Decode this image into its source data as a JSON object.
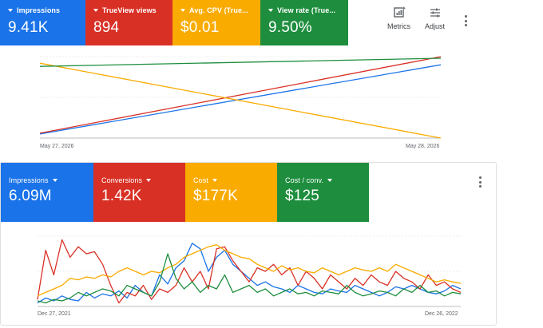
{
  "top_panel": {
    "metrics": [
      {
        "label": "Impressions",
        "value": "9.41K",
        "color": "#1a73e8"
      },
      {
        "label": "TrueView views",
        "value": "894",
        "color": "#d93025"
      },
      {
        "label": "Avg. CPV (True...",
        "value": "$0.01",
        "color": "#f9ab00"
      },
      {
        "label": "View rate (True...",
        "value": "9.50%",
        "color": "#1e8e3e"
      }
    ],
    "toolbar": {
      "metrics_label": "Metrics",
      "adjust_label": "Adjust",
      "metrics_icon": "metrics-chart-icon",
      "adjust_icon": "tune-icon",
      "more_icon": "more-vert-icon"
    },
    "date_start": "May 27, 2026",
    "date_end": "May 28, 2026"
  },
  "bottom_panel": {
    "metrics": [
      {
        "label": "Impressions",
        "value": "6.09M",
        "color": "#1a73e8"
      },
      {
        "label": "Conversions",
        "value": "1.42K",
        "color": "#d93025"
      },
      {
        "label": "Cost",
        "value": "$177K",
        "color": "#f9ab00"
      },
      {
        "label": "Cost / conv.",
        "value": "$125",
        "color": "#1e8e3e"
      }
    ],
    "more_icon": "more-vert-icon",
    "date_start": "Dec 27, 2021",
    "date_end": "Dec 26, 2022"
  },
  "chart_data": [
    {
      "type": "line",
      "x": [
        "May 27, 2026",
        "May 28, 2026"
      ],
      "series": [
        {
          "name": "Impressions",
          "color": "#1a73e8",
          "values": [
            0.05,
            0.9
          ]
        },
        {
          "name": "TrueView views",
          "color": "#d93025",
          "values": [
            0.06,
            1.0
          ]
        },
        {
          "name": "Avg. CPV (True...",
          "color": "#f9ab00",
          "values": [
            0.92,
            0.0
          ]
        },
        {
          "name": "View rate (True...",
          "color": "#1e8e3e",
          "values": [
            0.88,
            0.98
          ]
        }
      ],
      "grid": true
    },
    {
      "type": "line",
      "x_start": "Dec 27, 2021",
      "x_end": "Dec 26, 2022",
      "series": [
        {
          "name": "Impressions",
          "color": "#1a73e8",
          "values": [
            0.05,
            0.12,
            0.08,
            0.15,
            0.1,
            0.08,
            0.2,
            0.12,
            0.18,
            0.15,
            0.22,
            0.12,
            0.3,
            0.2,
            0.15,
            0.45,
            0.32,
            0.55,
            0.65,
            0.9,
            0.82,
            0.5,
            0.7,
            0.8,
            0.6,
            0.5,
            0.4,
            0.3,
            0.35,
            0.28,
            0.25,
            0.2,
            0.3,
            0.25,
            0.2,
            0.18,
            0.25,
            0.22,
            0.2,
            0.3,
            0.25,
            0.2,
            0.15,
            0.2,
            0.28,
            0.25,
            0.3,
            0.25,
            0.2,
            0.18,
            0.22,
            0.3,
            0.25
          ]
        },
        {
          "name": "Conversions",
          "color": "#d93025",
          "values": [
            0.1,
            0.8,
            0.45,
            0.95,
            0.7,
            0.85,
            0.75,
            0.78,
            0.6,
            0.3,
            0.05,
            0.2,
            0.15,
            0.3,
            0.1,
            0.25,
            0.2,
            0.3,
            0.55,
            0.35,
            0.5,
            0.25,
            0.82,
            0.85,
            0.65,
            0.5,
            0.35,
            0.55,
            0.5,
            0.6,
            0.45,
            0.55,
            0.3,
            0.5,
            0.4,
            0.25,
            0.45,
            0.35,
            0.25,
            0.4,
            0.3,
            0.45,
            0.35,
            0.3,
            0.5,
            0.4,
            0.35,
            0.25,
            0.45,
            0.3,
            0.35,
            0.25,
            0.2
          ]
        },
        {
          "name": "Cost",
          "color": "#f9ab00",
          "values": [
            0.15,
            0.2,
            0.25,
            0.3,
            0.4,
            0.38,
            0.42,
            0.4,
            0.45,
            0.42,
            0.5,
            0.55,
            0.5,
            0.45,
            0.5,
            0.48,
            0.55,
            0.6,
            0.7,
            0.75,
            0.8,
            0.85,
            0.88,
            0.8,
            0.75,
            0.7,
            0.68,
            0.6,
            0.55,
            0.5,
            0.58,
            0.52,
            0.55,
            0.5,
            0.48,
            0.55,
            0.5,
            0.45,
            0.5,
            0.55,
            0.52,
            0.5,
            0.55,
            0.5,
            0.6,
            0.55,
            0.5,
            0.45,
            0.4,
            0.35,
            0.38,
            0.35,
            0.33
          ]
        },
        {
          "name": "Cost / conv.",
          "color": "#1e8e3e",
          "values": [
            0.08,
            0.05,
            0.1,
            0.08,
            0.12,
            0.2,
            0.15,
            0.2,
            0.25,
            0.22,
            0.15,
            0.3,
            0.25,
            0.2,
            0.15,
            0.35,
            0.75,
            0.4,
            0.25,
            0.35,
            0.2,
            0.3,
            0.25,
            0.45,
            0.2,
            0.25,
            0.3,
            0.2,
            0.25,
            0.15,
            0.2,
            0.25,
            0.18,
            0.2,
            0.15,
            0.22,
            0.2,
            0.18,
            0.3,
            0.2,
            0.15,
            0.18,
            0.22,
            0.2,
            0.15,
            0.25,
            0.2,
            0.3,
            0.2,
            0.22,
            0.15,
            0.2,
            0.18
          ]
        }
      ],
      "grid": true
    }
  ]
}
